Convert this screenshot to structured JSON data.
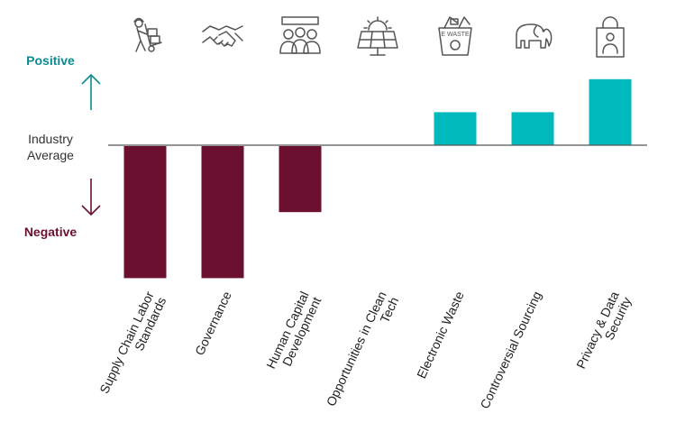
{
  "chart_data": {
    "type": "bar",
    "title": "",
    "xlabel": "",
    "ylabel": "",
    "ylim": [
      -4,
      2
    ],
    "baseline_label": [
      "Industry",
      "Average"
    ],
    "positive_label": "Positive",
    "negative_label": "Negative",
    "categories": [
      {
        "label": [
          "Supply Chain Labor",
          "Standards"
        ],
        "icon": "worker-hand-truck-icon"
      },
      {
        "label": [
          "Governance"
        ],
        "icon": "handshake-icon"
      },
      {
        "label": [
          "Human Capital",
          "Development"
        ],
        "icon": "people-group-icon"
      },
      {
        "label": [
          "Opportunities in Clean",
          "Tech"
        ],
        "icon": "solar-panel-icon"
      },
      {
        "label": [
          "Electronic Waste"
        ],
        "icon": "ewaste-bin-icon"
      },
      {
        "label": [
          "Controversial Sourcing"
        ],
        "icon": "elephant-icon"
      },
      {
        "label": [
          "Privacy & Data",
          "Security"
        ],
        "icon": "padlock-icon"
      }
    ],
    "ewaste_bin_text": "E WASTE",
    "values": [
      -4,
      -4,
      -2,
      0,
      1,
      1,
      2
    ],
    "colors": {
      "positive": "#00b9bd",
      "negative": "#6b1030",
      "positive_text": "#0b8a93",
      "negative_text": "#6b1030",
      "axis": "#555555",
      "icon": "#555555"
    },
    "grid": false,
    "legend": "none"
  }
}
